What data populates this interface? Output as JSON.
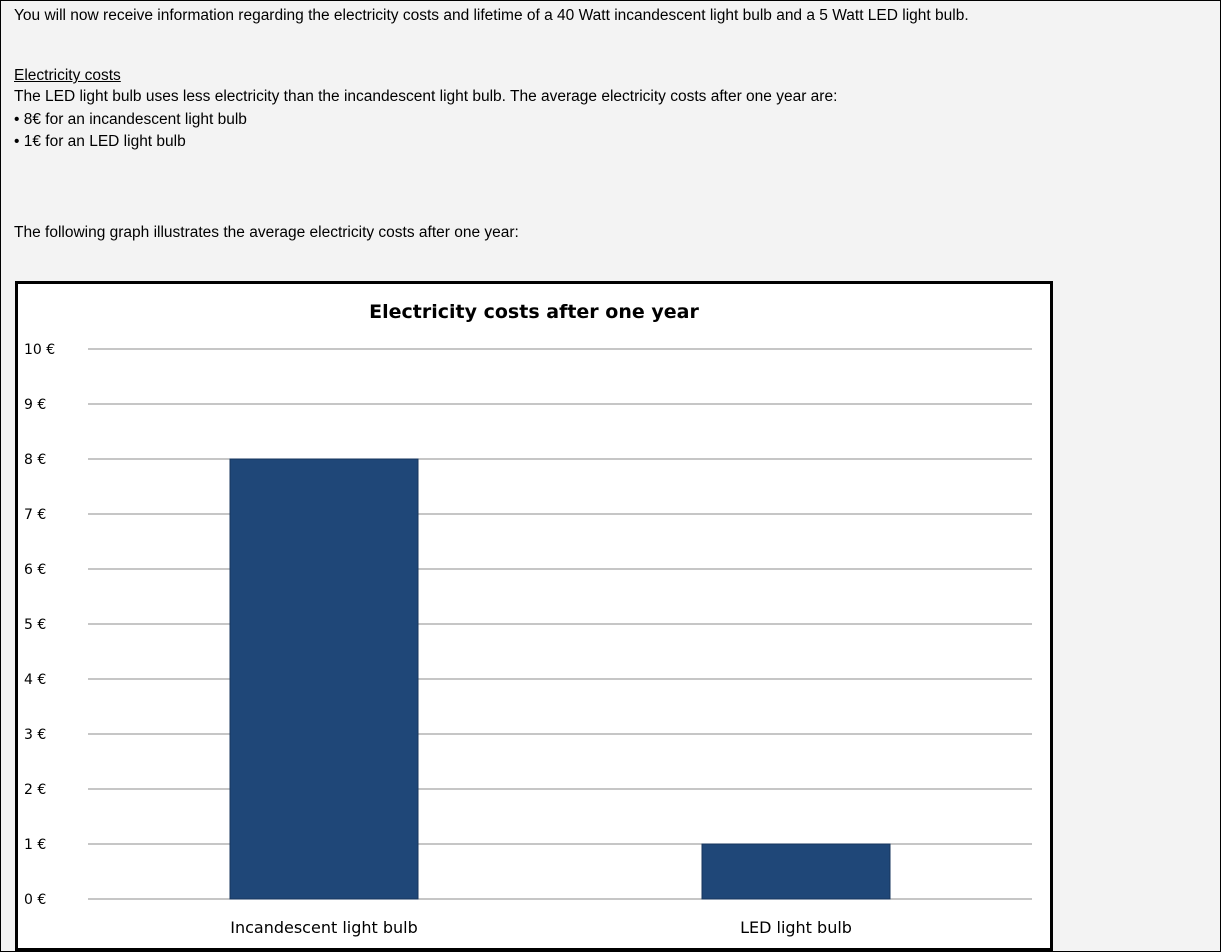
{
  "intro": "You will now receive information regarding the electricity costs and lifetime of a 40 Watt incandescent light bulb and a 5 Watt LED light bulb.",
  "section_heading": "Electricity costs",
  "description": "The LED light bulb uses less electricity than the incandescent light bulb. The average electricity costs after one year are:",
  "bullets": [
    "• 8€ for an incandescent light bulb",
    "• 1€ for an LED light bulb"
  ],
  "graph_intro": "The following graph illustrates the average electricity costs after one year:",
  "colors": {
    "bar": "#1f4778",
    "grid": "#8c8c8c",
    "panel": "#f3f3f3"
  },
  "chart_data": {
    "type": "bar",
    "title": "Electricity costs after one year",
    "categories": [
      "Incandescent light bulb",
      "LED light bulb"
    ],
    "values": [
      8,
      1
    ],
    "ylim": [
      0,
      10
    ],
    "yticks": [
      "0 €",
      "1 €",
      "2 €",
      "3 €",
      "4 €",
      "5 €",
      "6 €",
      "7 €",
      "8 €",
      "9 €",
      "10 €"
    ],
    "xlabel": "",
    "ylabel": "",
    "grid": true,
    "legend": "none"
  }
}
